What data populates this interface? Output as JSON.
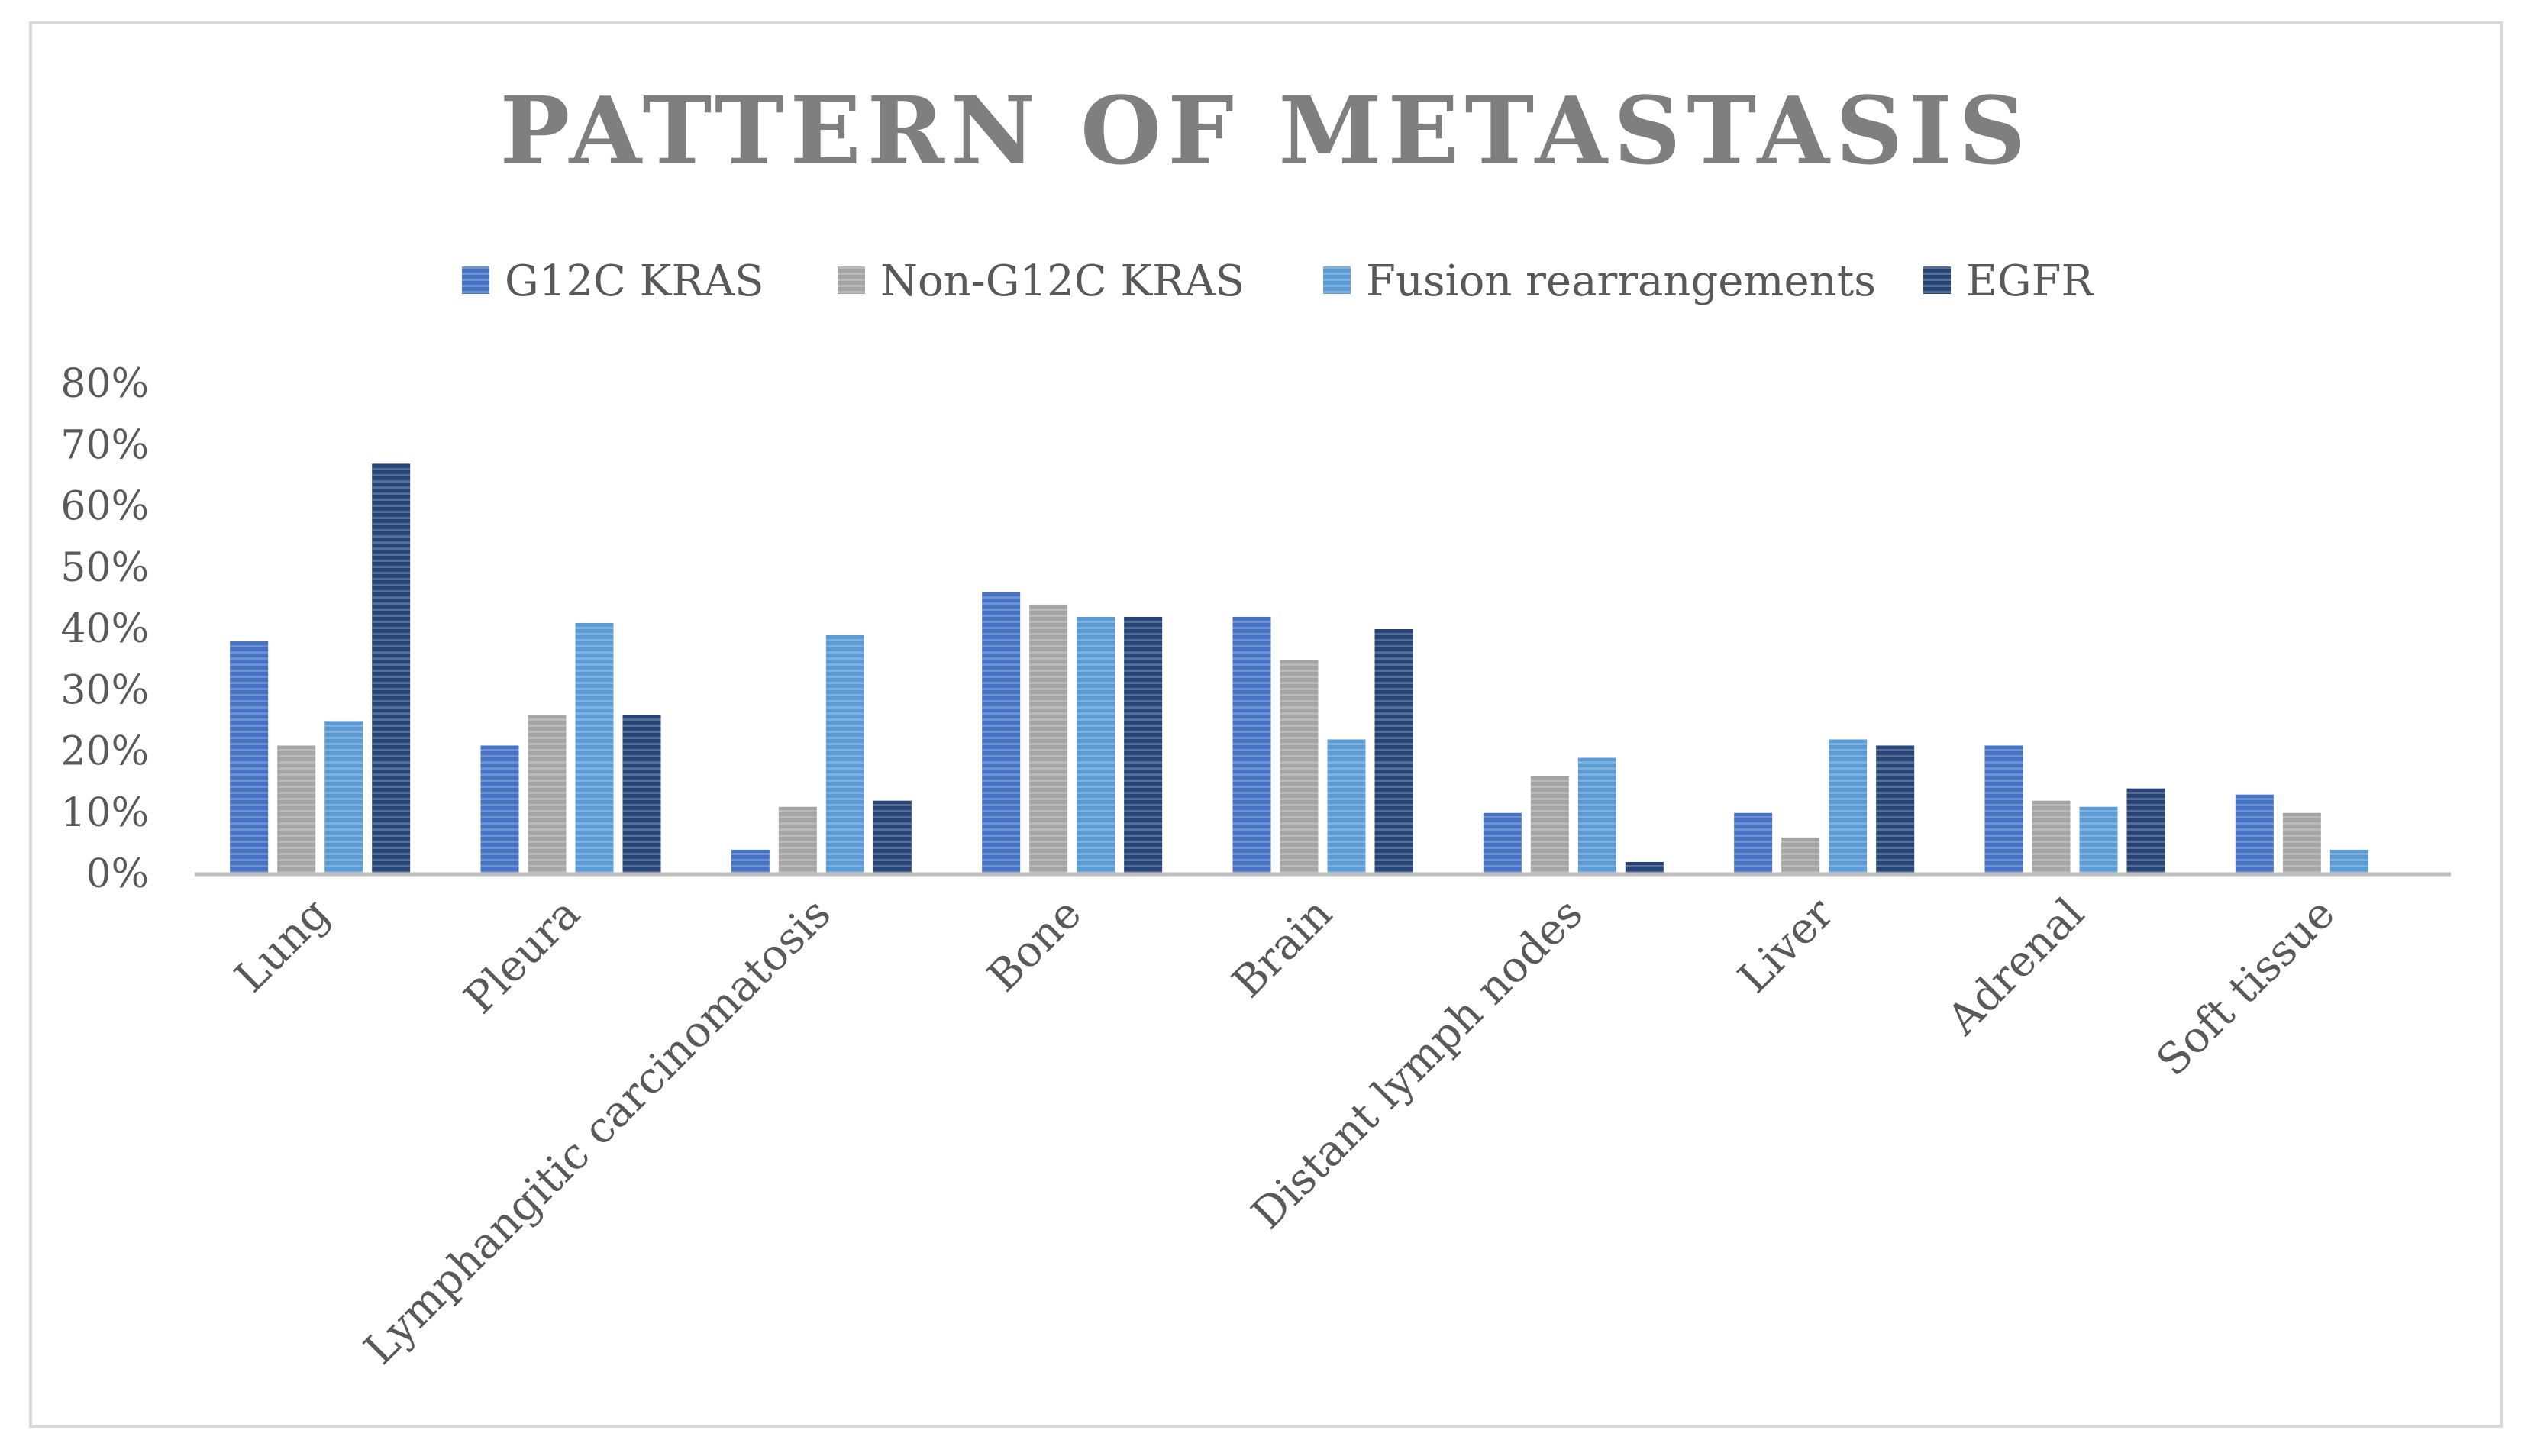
{
  "colors": {
    "background": "#ffffff",
    "frame": "#d9d9d9",
    "title": "#7f7f7f",
    "text": "#595959",
    "axis": "#bfbfbf"
  },
  "chart_data": {
    "type": "bar",
    "title": "PATTERN OF METASTASIS",
    "xlabel": "",
    "ylabel": "",
    "ylim": [
      0,
      0.8
    ],
    "yticks": [
      0,
      0.1,
      0.2,
      0.3,
      0.4,
      0.5,
      0.6,
      0.7,
      0.8
    ],
    "ytick_labels": [
      "0%",
      "10%",
      "20%",
      "30%",
      "40%",
      "50%",
      "60%",
      "70%",
      "80%"
    ],
    "grid": false,
    "legend_position": "top-center",
    "categories": [
      "Lung",
      "Pleura",
      "Lymphangitic carcinomatosis",
      "Bone",
      "Brain",
      "Distant lymph nodes",
      "Liver",
      "Adrenal",
      "Soft tissue"
    ],
    "series": [
      {
        "name": "G12C KRAS",
        "color": "#4472c4",
        "values": [
          0.38,
          0.21,
          0.04,
          0.46,
          0.42,
          0.1,
          0.1,
          0.21,
          0.13
        ]
      },
      {
        "name": "Non-G12C KRAS",
        "color": "#a5a5a5",
        "values": [
          0.21,
          0.26,
          0.11,
          0.44,
          0.35,
          0.16,
          0.06,
          0.12,
          0.1
        ]
      },
      {
        "name": "Fusion rearrangements",
        "color": "#5b9bd5",
        "values": [
          0.25,
          0.41,
          0.39,
          0.42,
          0.22,
          0.19,
          0.22,
          0.11,
          0.04
        ]
      },
      {
        "name": "EGFR",
        "color": "#264478",
        "values": [
          0.67,
          0.26,
          0.12,
          0.42,
          0.4,
          0.02,
          0.21,
          0.14,
          0.0
        ]
      }
    ]
  }
}
